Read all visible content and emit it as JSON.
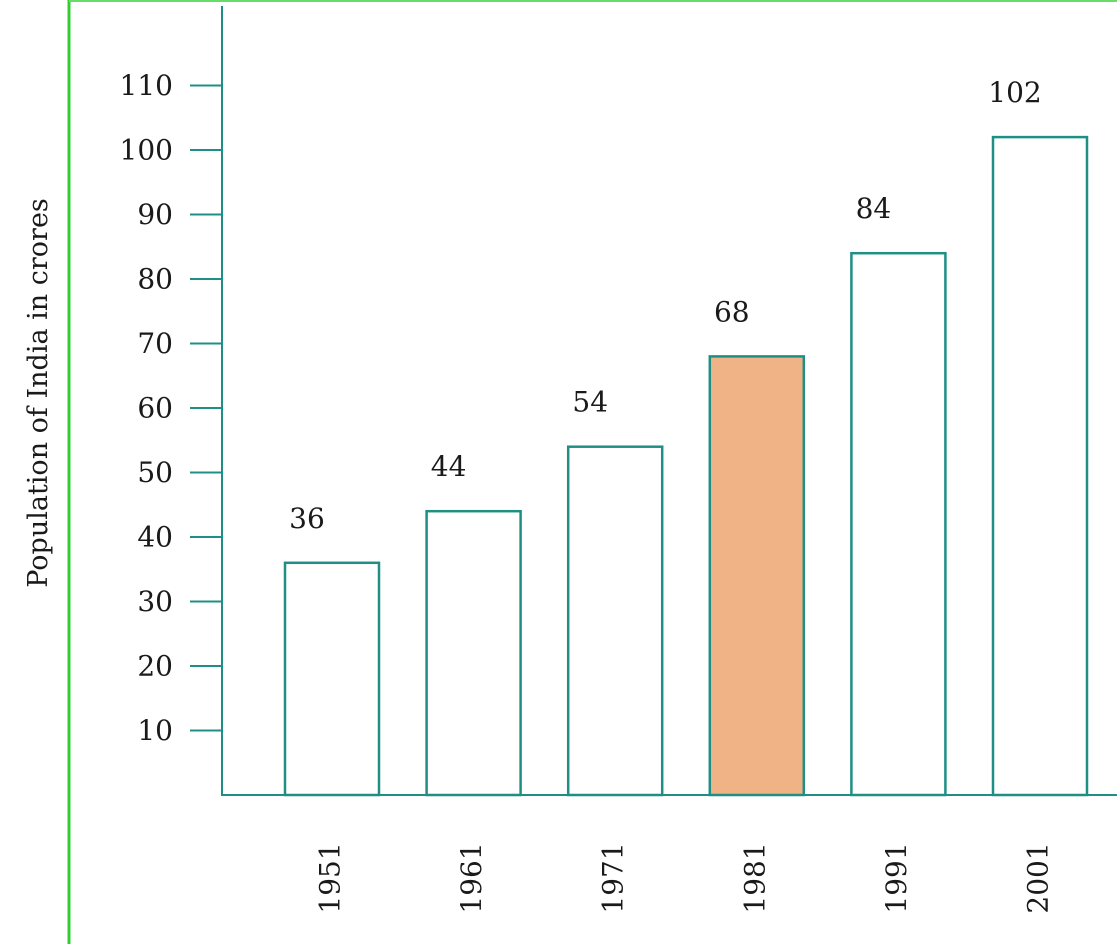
{
  "colors": {
    "axis": "#1f8f86",
    "bar_stroke": "#1f8f86",
    "bar_fill": "#ffffff",
    "highlight_fill": "#f0b386",
    "frame_left": "#33cc33",
    "frame_top": "#66dd66"
  },
  "chart_data": {
    "type": "bar",
    "title": "",
    "xlabel": "",
    "ylabel": "Population of India in crores",
    "categories": [
      "1951",
      "1961",
      "1971",
      "1981",
      "1991",
      "2001"
    ],
    "values": [
      36,
      44,
      54,
      68,
      84,
      102
    ],
    "value_labels": [
      "36",
      "44",
      "54",
      "68",
      "84",
      "102"
    ],
    "highlighted_category": "1981",
    "y_ticks": [
      "10",
      "20",
      "30",
      "40",
      "50",
      "60",
      "70",
      "80",
      "90",
      "100",
      "110"
    ],
    "ylim": [
      0,
      120
    ],
    "grid": false,
    "legend": "none"
  }
}
